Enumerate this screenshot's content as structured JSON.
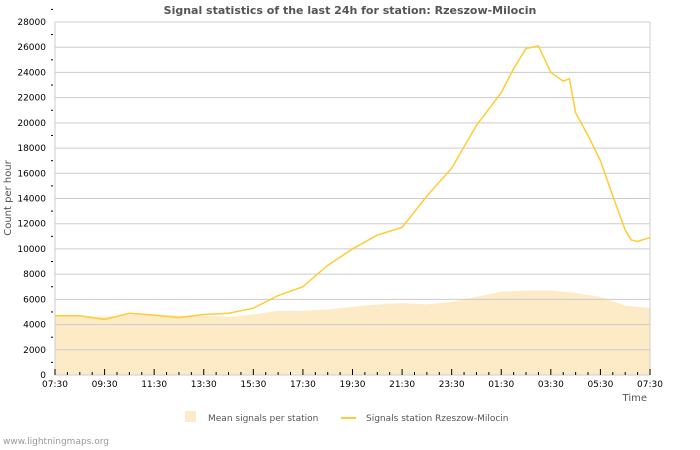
{
  "chart_data": {
    "type": "area",
    "title": "Signal statistics of the last 24h for station: Rzeszow-Milocin",
    "xlabel": "Time",
    "ylabel": "Count per hour",
    "ylim": [
      0,
      28000
    ],
    "yticks": [
      0,
      2000,
      4000,
      6000,
      8000,
      10000,
      12000,
      14000,
      16000,
      18000,
      20000,
      22000,
      24000,
      26000,
      28000
    ],
    "xlim_hours": [
      0,
      24
    ],
    "xtick_labels": [
      "07:30",
      "09:30",
      "11:30",
      "13:30",
      "15:30",
      "17:30",
      "19:30",
      "21:30",
      "23:30",
      "01:30",
      "03:30",
      "05:30",
      "07:30"
    ],
    "grid": true,
    "legend_position": "bottom",
    "series": [
      {
        "name": "Mean signals per station",
        "kind": "area",
        "color": "#fdebc8",
        "x": [
          0,
          1,
          2,
          3,
          4,
          5,
          6,
          7,
          8,
          9,
          10,
          11,
          12,
          13,
          14,
          15,
          16,
          17,
          18,
          19,
          20,
          21,
          22,
          23,
          24
        ],
        "values": [
          4700,
          4700,
          4600,
          4800,
          4800,
          4700,
          4700,
          4600,
          4800,
          5100,
          5100,
          5200,
          5400,
          5600,
          5700,
          5600,
          5800,
          6200,
          6600,
          6700,
          6700,
          6500,
          6200,
          5500,
          5300
        ]
      },
      {
        "name": "Signals station Rzeszow-Milocin",
        "kind": "line",
        "color": "#ffcc33",
        "x": [
          0,
          1,
          2,
          3,
          4,
          5,
          6,
          7,
          8,
          9,
          10,
          11,
          12,
          13,
          14,
          15,
          16,
          17,
          18,
          18.5,
          19,
          19.5,
          20,
          20.5,
          20.75,
          21,
          21.5,
          22,
          22.5,
          23,
          23.25,
          23.5,
          24
        ],
        "values": [
          4700,
          4700,
          4400,
          4900,
          4750,
          4550,
          4800,
          4900,
          5300,
          6300,
          7000,
          8700,
          10000,
          11100,
          11700,
          14200,
          16400,
          19800,
          22400,
          24300,
          25900,
          26100,
          24000,
          23300,
          23500,
          20800,
          19000,
          17000,
          14200,
          11500,
          10700,
          10600,
          10900
        ]
      }
    ]
  },
  "watermark": "www.lightningmaps.org"
}
